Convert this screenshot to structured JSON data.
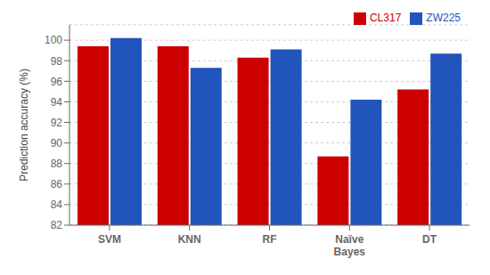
{
  "chart_data": {
    "type": "bar",
    "categories": [
      "SVM",
      "KNN",
      "RF",
      "Naïve\nBayes",
      "DT"
    ],
    "series": [
      {
        "name": "CL317",
        "color": "#cc0000",
        "values": [
          99.4,
          99.4,
          98.3,
          88.7,
          95.2
        ]
      },
      {
        "name": "ZW225",
        "color": "#2255bb",
        "values": [
          100.2,
          97.3,
          99.1,
          94.2,
          98.7
        ]
      }
    ],
    "ylabel": "Prediction accuracy (%)",
    "ylim": [
      82,
      101.5
    ],
    "yticks": [
      82,
      84,
      86,
      88,
      90,
      92,
      94,
      96,
      98,
      100
    ],
    "grid": true,
    "legend": "upper right"
  }
}
